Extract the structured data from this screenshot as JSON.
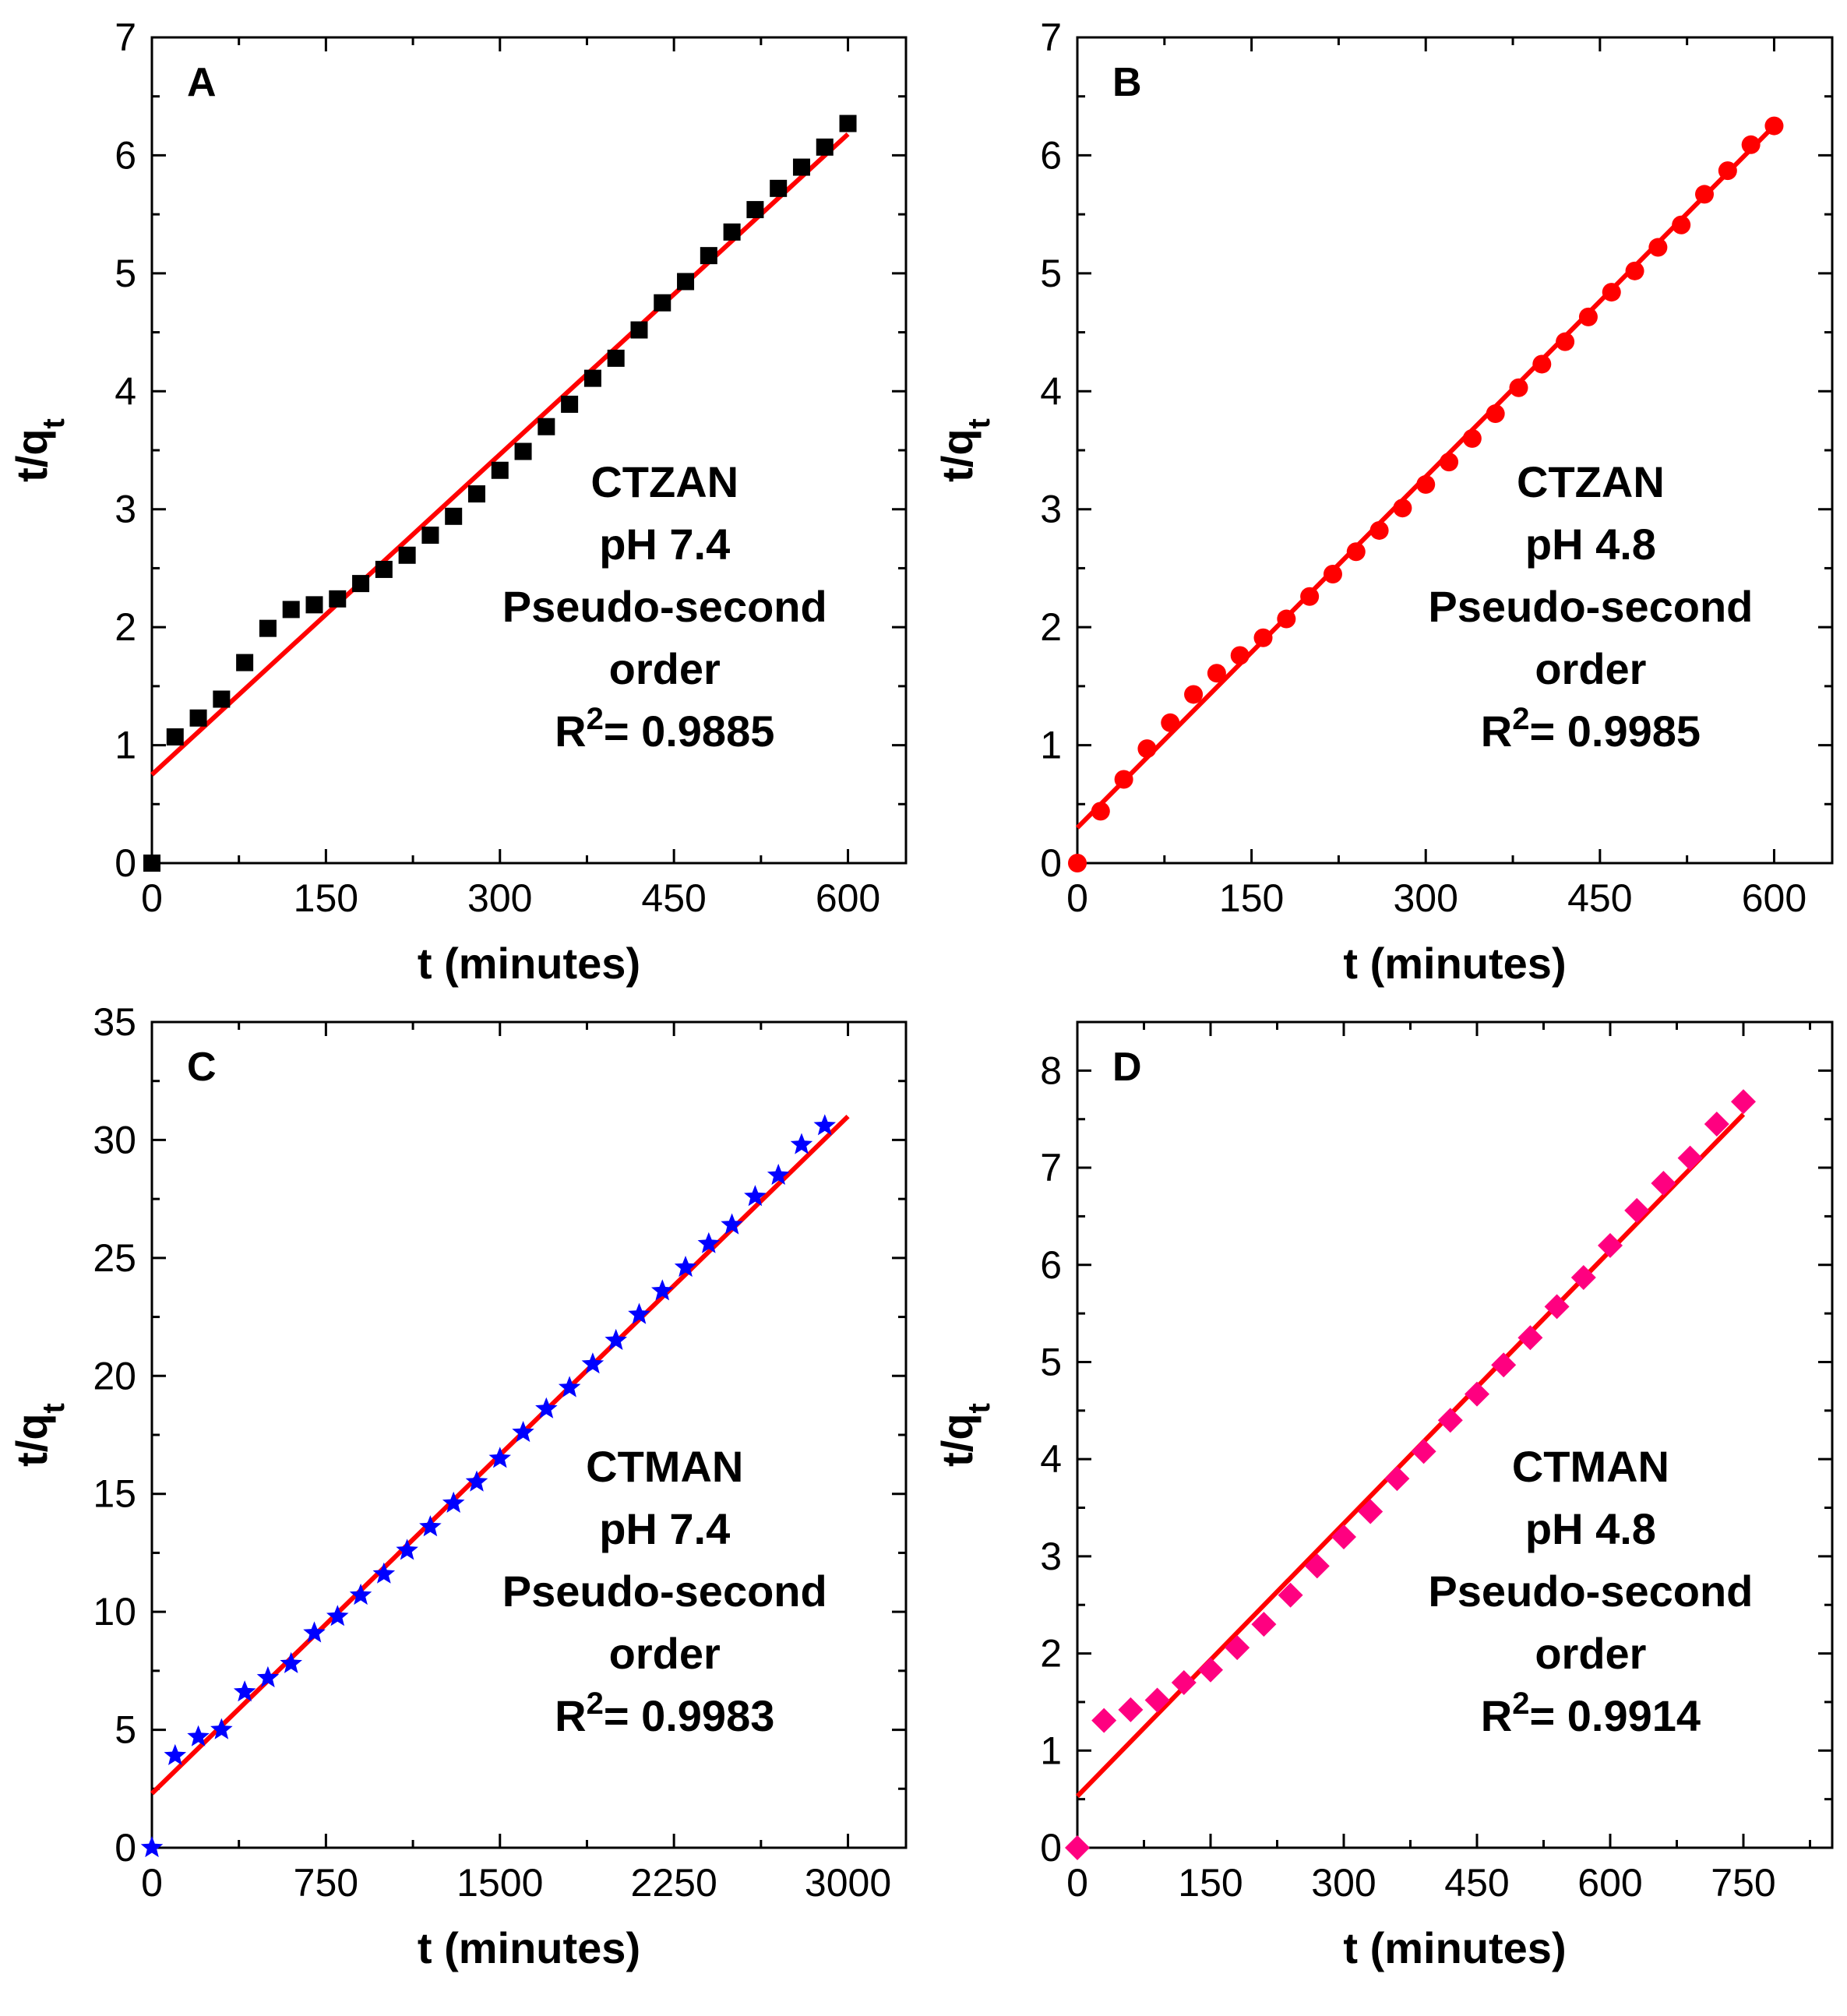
{
  "chart_data": [
    {
      "panel": "A",
      "type": "scatter",
      "xlabel": "t (minutes)",
      "ylabel": "t/qt",
      "xlim": [
        0,
        650
      ],
      "ylim": [
        0,
        7
      ],
      "xticks": [
        0,
        150,
        300,
        450,
        600
      ],
      "yticks": [
        0,
        1,
        2,
        3,
        4,
        5,
        6,
        7
      ],
      "annotations": [
        "CTZAN",
        "pH 7.4",
        "Pseudo-second",
        "order",
        "R2= 0.9885"
      ],
      "marker": "square",
      "marker_color": "#000000",
      "fit_color": "#ff0000",
      "fit": {
        "x": [
          0,
          600
        ],
        "y": [
          0.75,
          6.18
        ]
      },
      "series": [
        {
          "x": [
            0,
            20,
            40,
            60,
            80,
            100,
            120,
            140,
            160,
            180,
            200,
            220,
            240,
            260,
            280,
            300,
            320,
            340,
            360,
            380,
            400,
            420,
            440,
            460,
            480,
            500,
            520,
            540,
            560,
            580,
            600
          ],
          "y": [
            0.0,
            1.07,
            1.23,
            1.39,
            1.7,
            1.99,
            2.15,
            2.19,
            2.24,
            2.37,
            2.49,
            2.61,
            2.78,
            2.94,
            3.13,
            3.33,
            3.49,
            3.7,
            3.89,
            4.11,
            4.28,
            4.52,
            4.75,
            4.93,
            5.15,
            5.35,
            5.54,
            5.72,
            5.9,
            6.07,
            6.27
          ]
        }
      ]
    },
    {
      "panel": "B",
      "type": "scatter",
      "xlabel": "t (minutes)",
      "ylabel": "t/qt",
      "xlim": [
        0,
        650
      ],
      "ylim": [
        0,
        7
      ],
      "xticks": [
        0,
        150,
        300,
        450,
        600
      ],
      "yticks": [
        0,
        1,
        2,
        3,
        4,
        5,
        6,
        7
      ],
      "annotations": [
        "CTZAN",
        "pH 4.8",
        "Pseudo-second",
        "order",
        "R2= 0.9985"
      ],
      "marker": "circle",
      "marker_color": "#ff0000",
      "fit_color": "#ff0000",
      "fit": {
        "x": [
          0,
          600
        ],
        "y": [
          0.3,
          6.25
        ]
      },
      "series": [
        {
          "x": [
            0,
            20,
            40,
            60,
            80,
            100,
            120,
            140,
            160,
            180,
            200,
            220,
            240,
            260,
            280,
            300,
            320,
            340,
            360,
            380,
            400,
            420,
            440,
            460,
            480,
            500,
            520,
            540,
            560,
            580,
            600
          ],
          "y": [
            0.0,
            0.44,
            0.71,
            0.97,
            1.19,
            1.43,
            1.61,
            1.76,
            1.91,
            2.07,
            2.26,
            2.45,
            2.64,
            2.82,
            3.01,
            3.21,
            3.4,
            3.6,
            3.81,
            4.03,
            4.23,
            4.42,
            4.63,
            4.84,
            5.02,
            5.22,
            5.41,
            5.67,
            5.87,
            6.09,
            6.25
          ]
        }
      ]
    },
    {
      "panel": "C",
      "type": "scatter",
      "xlabel": "t (minutes)",
      "ylabel": "t/qt",
      "xlim": [
        0,
        3250
      ],
      "ylim": [
        0,
        35
      ],
      "xticks": [
        0,
        750,
        1500,
        2250,
        3000
      ],
      "yticks": [
        0,
        5,
        10,
        15,
        20,
        25,
        30,
        35
      ],
      "annotations": [
        "CTMAN",
        "pH 7.4",
        "Pseudo-second",
        "order",
        "R2= 0.9983"
      ],
      "marker": "star",
      "marker_color": "#0000ff",
      "fit_color": "#ff0000",
      "fit": {
        "x": [
          0,
          3000
        ],
        "y": [
          2.3,
          31.0
        ]
      },
      "series": [
        {
          "x": [
            0,
            100,
            200,
            300,
            400,
            500,
            600,
            700,
            800,
            900,
            1000,
            1100,
            1200,
            1300,
            1400,
            1500,
            1600,
            1700,
            1800,
            1900,
            2000,
            2100,
            2200,
            2300,
            2400,
            2500,
            2600,
            2700,
            2800,
            2900
          ],
          "y": [
            0.0,
            3.9,
            4.7,
            5.0,
            6.6,
            7.2,
            7.8,
            9.1,
            9.8,
            10.7,
            11.6,
            12.6,
            13.6,
            14.6,
            15.5,
            16.5,
            17.6,
            18.6,
            19.5,
            20.5,
            21.5,
            22.6,
            23.6,
            24.6,
            25.6,
            26.4,
            27.6,
            28.5,
            29.8,
            30.6
          ]
        }
      ]
    },
    {
      "panel": "D",
      "type": "scatter",
      "xlabel": "t (minutes)",
      "ylabel": "t/qt",
      "xlim": [
        0,
        850
      ],
      "ylim": [
        0,
        8.5
      ],
      "xticks": [
        0,
        150,
        300,
        450,
        600,
        750
      ],
      "yticks": [
        0,
        1,
        2,
        3,
        4,
        5,
        6,
        7,
        8
      ],
      "annotations": [
        "CTMAN",
        "pH 4.8",
        "Pseudo-second",
        "order",
        "R2= 0.9914"
      ],
      "marker": "diamond",
      "marker_color": "#ff0080",
      "fit_color": "#ff0000",
      "fit": {
        "x": [
          0,
          750
        ],
        "y": [
          0.53,
          7.55
        ]
      },
      "series": [
        {
          "x": [
            0,
            30,
            60,
            90,
            120,
            150,
            180,
            210,
            240,
            270,
            300,
            330,
            360,
            390,
            420,
            450,
            480,
            510,
            540,
            570,
            600,
            630,
            660,
            690,
            720,
            750
          ],
          "y": [
            0.0,
            1.31,
            1.42,
            1.52,
            1.7,
            1.83,
            2.06,
            2.3,
            2.6,
            2.9,
            3.2,
            3.46,
            3.8,
            4.08,
            4.4,
            4.67,
            4.97,
            5.25,
            5.57,
            5.87,
            6.2,
            6.56,
            6.84,
            7.1,
            7.45,
            7.68
          ]
        }
      ]
    }
  ]
}
